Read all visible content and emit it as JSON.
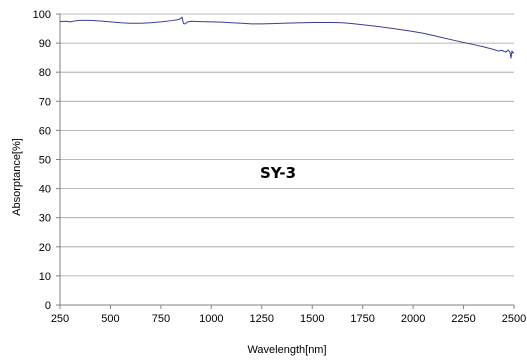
{
  "chart_data": {
    "type": "line",
    "title": "",
    "xlabel": "Wavelength[nm]",
    "ylabel": "Absorptance[%]",
    "annotation": "SY-3",
    "xlim": [
      250,
      2500
    ],
    "ylim": [
      0,
      100
    ],
    "x_ticks": [
      250,
      500,
      750,
      1000,
      1250,
      1500,
      1750,
      2000,
      2250,
      2500
    ],
    "y_ticks": [
      0,
      10,
      20,
      30,
      40,
      50,
      60,
      70,
      80,
      90,
      100
    ],
    "grid": "horizontal",
    "legend": "none",
    "line_color": "#3a3f8f",
    "series": [
      {
        "x": [
          250,
          280,
          300,
          330,
          350,
          400,
          450,
          500,
          550,
          600,
          650,
          700,
          750,
          800,
          840,
          855,
          862,
          870,
          880,
          900,
          950,
          1000,
          1050,
          1100,
          1150,
          1200,
          1250,
          1300,
          1350,
          1400,
          1450,
          1500,
          1550,
          1600,
          1650,
          1700,
          1750,
          1800,
          1850,
          1900,
          1950,
          2000,
          2050,
          2100,
          2150,
          2200,
          2250,
          2300,
          2350,
          2400,
          2420,
          2440,
          2460,
          2470,
          2480,
          2485,
          2490,
          2495,
          2500
        ],
        "y": [
          97.4,
          97.5,
          97.3,
          97.7,
          97.8,
          97.8,
          97.6,
          97.3,
          97.0,
          96.8,
          96.8,
          97.0,
          97.3,
          97.7,
          98.1,
          98.9,
          96.7,
          96.6,
          97.2,
          97.5,
          97.4,
          97.3,
          97.2,
          97.0,
          96.8,
          96.6,
          96.6,
          96.7,
          96.8,
          96.9,
          97.0,
          97.1,
          97.1,
          97.1,
          97.0,
          96.7,
          96.3,
          95.9,
          95.5,
          95.0,
          94.5,
          94.0,
          93.4,
          92.6,
          91.8,
          91.0,
          90.2,
          89.5,
          88.7,
          87.8,
          87.3,
          87.5,
          86.9,
          87.6,
          86.9,
          84.8,
          87.3,
          86.6,
          86.7
        ]
      }
    ]
  }
}
